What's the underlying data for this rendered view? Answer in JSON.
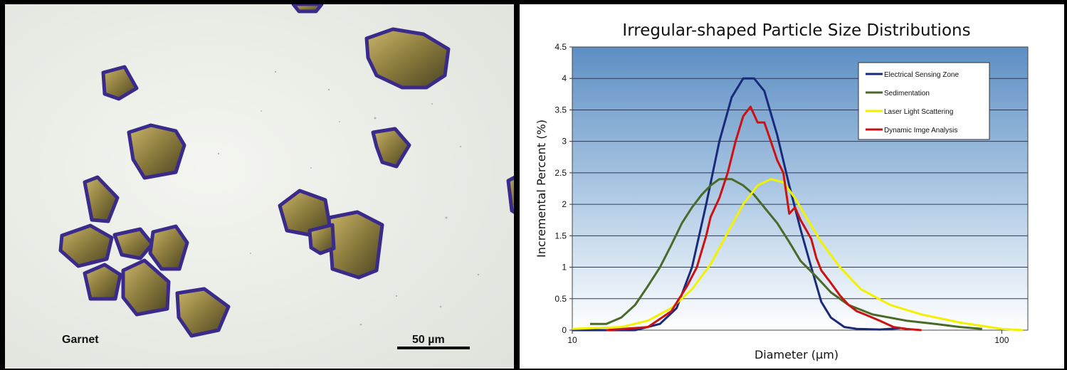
{
  "micrograph": {
    "specimen_label": "Garnet",
    "scale_label": "50 µm"
  },
  "chart_data": {
    "type": "line",
    "title": "Irregular-shaped Particle Size Distributions",
    "xlabel": "Diameter (µm)",
    "ylabel": "Incremental Percent (%)",
    "xscale": "log",
    "xlim": [
      10,
      115
    ],
    "ylim": [
      0,
      4.5
    ],
    "x_tick_labels": [
      "10",
      "100"
    ],
    "y_tick_labels": [
      "0",
      "0.5",
      "1",
      "1.5",
      "2",
      "2.5",
      "3",
      "3.5",
      "4",
      "4.5"
    ],
    "grid": true,
    "legend_position": "top-right",
    "plot_background": "gradient light-to-steel-blue",
    "series": [
      {
        "name": "Electrical Sensing Zone",
        "color": "#1a2a7a",
        "x": [
          10,
          14,
          16,
          17.5,
          19,
          20.5,
          22,
          23.5,
          25,
          26.5,
          28,
          30,
          32,
          34,
          36,
          38,
          40,
          43,
          46,
          52,
          58
        ],
        "y": [
          0,
          0,
          0.1,
          0.35,
          1.0,
          2.0,
          3.0,
          3.7,
          4.0,
          4.0,
          3.8,
          3.1,
          2.3,
          1.6,
          1.0,
          0.45,
          0.2,
          0.05,
          0.02,
          0.01,
          0.03
        ]
      },
      {
        "name": "Sedimentation",
        "color": "#4a6a2a",
        "x": [
          11,
          12,
          13,
          14,
          15,
          16,
          17,
          18,
          19,
          20,
          21,
          22,
          23.5,
          25,
          26.5,
          28,
          30,
          32,
          34,
          37,
          40,
          44,
          50,
          60,
          70,
          80,
          90
        ],
        "y": [
          0.1,
          0.1,
          0.2,
          0.4,
          0.7,
          1.0,
          1.35,
          1.7,
          1.95,
          2.15,
          2.3,
          2.4,
          2.4,
          2.3,
          2.15,
          1.95,
          1.7,
          1.4,
          1.1,
          0.85,
          0.6,
          0.4,
          0.25,
          0.15,
          0.1,
          0.05,
          0.02
        ]
      },
      {
        "name": "Laser Light Scattering",
        "color": "#f2f200",
        "x": [
          10,
          13,
          15,
          17,
          19,
          21,
          23,
          25,
          27,
          29,
          31,
          33,
          35,
          38,
          42,
          47,
          55,
          65,
          80,
          100,
          112
        ],
        "y": [
          0.02,
          0.05,
          0.15,
          0.35,
          0.65,
          1.05,
          1.55,
          2.0,
          2.3,
          2.4,
          2.35,
          2.1,
          1.8,
          1.4,
          1.0,
          0.65,
          0.4,
          0.25,
          0.12,
          0.02,
          0
        ]
      },
      {
        "name": "Dynamic Imge Analysis",
        "color": "#cc1111",
        "x": [
          12,
          15,
          17,
          18.5,
          19.5,
          20.5,
          21,
          22,
          23,
          24,
          25,
          26,
          27,
          28,
          29,
          30,
          31,
          32,
          33,
          34,
          35,
          36,
          37,
          38,
          40,
          42,
          44,
          46,
          48,
          52,
          56,
          60,
          65
        ],
        "y": [
          0,
          0.05,
          0.3,
          0.7,
          1.0,
          1.5,
          1.8,
          2.1,
          2.5,
          3.0,
          3.4,
          3.55,
          3.3,
          3.3,
          3.0,
          2.7,
          2.5,
          1.85,
          1.95,
          1.75,
          1.6,
          1.45,
          1.15,
          0.95,
          0.75,
          0.55,
          0.4,
          0.3,
          0.25,
          0.15,
          0.05,
          0.02,
          0
        ]
      }
    ]
  }
}
